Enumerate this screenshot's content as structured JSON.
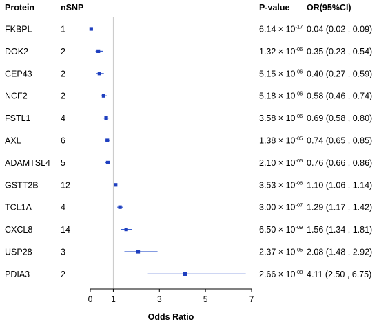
{
  "columns": {
    "protein": "Protein",
    "nsnp": "nSNP",
    "pvalue": "P-value",
    "or": "OR(95%CI)"
  },
  "chart_data": {
    "type": "forest",
    "xlabel": "Odds Ratio",
    "xlim": [
      0,
      7
    ],
    "xticks": [
      0,
      1,
      3,
      5,
      7
    ],
    "reference_line": 1,
    "colors": {
      "point": "#1f3fbf",
      "ci": "#3a5fcf",
      "reference": "#c8c8c8",
      "axis": "#000000"
    },
    "rows": [
      {
        "protein": "FKBPL",
        "nsnp": "1",
        "p_mant": "6.14",
        "p_exp": "-17",
        "or": 0.04,
        "lo": 0.02,
        "hi": 0.09,
        "or_text": "0.04 (0.02 , 0.09)"
      },
      {
        "protein": "DOK2",
        "nsnp": "2",
        "p_mant": "1.32",
        "p_exp": "-06",
        "or": 0.35,
        "lo": 0.23,
        "hi": 0.54,
        "or_text": "0.35 (0.23 , 0.54)"
      },
      {
        "protein": "CEP43",
        "nsnp": "2",
        "p_mant": "5.15",
        "p_exp": "-06",
        "or": 0.4,
        "lo": 0.27,
        "hi": 0.59,
        "or_text": "0.40 (0.27 , 0.59)"
      },
      {
        "protein": "NCF2",
        "nsnp": "2",
        "p_mant": "5.18",
        "p_exp": "-06",
        "or": 0.58,
        "lo": 0.46,
        "hi": 0.74,
        "or_text": "0.58 (0.46 , 0.74)"
      },
      {
        "protein": "FSTL1",
        "nsnp": "4",
        "p_mant": "3.58",
        "p_exp": "-06",
        "or": 0.69,
        "lo": 0.58,
        "hi": 0.8,
        "or_text": "0.69 (0.58 , 0.80)"
      },
      {
        "protein": "AXL",
        "nsnp": "6",
        "p_mant": "1.38",
        "p_exp": "-05",
        "or": 0.74,
        "lo": 0.65,
        "hi": 0.85,
        "or_text": "0.74 (0.65 , 0.85)"
      },
      {
        "protein": "ADAMTSL4",
        "nsnp": "5",
        "p_mant": "2.10",
        "p_exp": "-05",
        "or": 0.76,
        "lo": 0.66,
        "hi": 0.86,
        "or_text": "0.76 (0.66 , 0.86)"
      },
      {
        "protein": "GSTT2B",
        "nsnp": "12",
        "p_mant": "3.53",
        "p_exp": "-06",
        "or": 1.1,
        "lo": 1.06,
        "hi": 1.14,
        "or_text": "1.10 (1.06 , 1.14)"
      },
      {
        "protein": "TCL1A",
        "nsnp": "4",
        "p_mant": "3.00",
        "p_exp": "-07",
        "or": 1.29,
        "lo": 1.17,
        "hi": 1.42,
        "or_text": "1.29 (1.17 , 1.42)"
      },
      {
        "protein": "CXCL8",
        "nsnp": "14",
        "p_mant": "6.50",
        "p_exp": "-09",
        "or": 1.56,
        "lo": 1.34,
        "hi": 1.81,
        "or_text": "1.56 (1.34 , 1.81)"
      },
      {
        "protein": "USP28",
        "nsnp": "3",
        "p_mant": "2.37",
        "p_exp": "-05",
        "or": 2.08,
        "lo": 1.48,
        "hi": 2.92,
        "or_text": "2.08 (1.48 , 2.92)"
      },
      {
        "protein": "PDIA3",
        "nsnp": "2",
        "p_mant": "2.66",
        "p_exp": "-08",
        "or": 4.11,
        "lo": 2.5,
        "hi": 6.75,
        "or_text": "4.11 (2.50 , 6.75)"
      }
    ]
  }
}
